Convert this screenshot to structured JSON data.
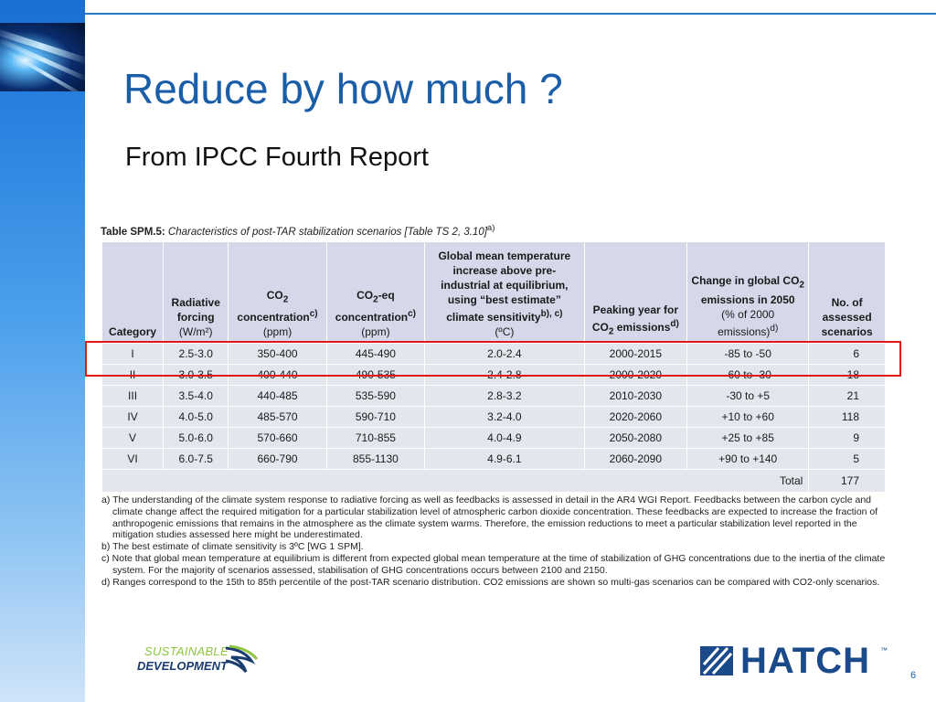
{
  "slide": {
    "title": "Reduce by how much ?",
    "subtitle": "From IPCC Fourth Report",
    "page_number": "6"
  },
  "table": {
    "label": "Table SPM.5:",
    "caption": "Characteristics of post-TAR stabilization scenarios [Table TS 2, 3.10]",
    "caption_sup": "a)",
    "headers": {
      "category": "Category",
      "radiative_forcing_bold": "Radiative forcing",
      "radiative_forcing_unit": "(W/m²)",
      "co2_bold_a": "CO",
      "co2_bold_sub": "2",
      "co2_bold_b": "concentration",
      "co2_sup": "c)",
      "co2_unit": "(ppm)",
      "co2eq_bold_a": "CO",
      "co2eq_bold_sub": "2",
      "co2eq_bold_b": "-eq concentration",
      "co2eq_sup": "c)",
      "co2eq_unit": "(ppm)",
      "temp_bold": "Global mean temperature increase above pre-industrial at equilibrium, using “best estimate” climate sensitivity",
      "temp_sup": "b), c)",
      "temp_unit": "(ºC)",
      "peak_bold_a": "Peaking year for CO",
      "peak_bold_sub": "2",
      "peak_bold_b": "emissions",
      "peak_sup": "d)",
      "change_bold_a": "Change in global CO",
      "change_bold_sub": "2",
      "change_bold_b": "emissions in 2050",
      "change_unit": "(% of 2000 emissions)",
      "change_sup": "d)",
      "scenarios_bold": "No. of assessed scenarios"
    },
    "rows": [
      {
        "category": "I",
        "forcing": "2.5-3.0",
        "co2": "350-400",
        "co2eq": "445-490",
        "temp": "2.0-2.4",
        "peak": "2000-2015",
        "change": "-85 to -50",
        "scenarios": "6"
      },
      {
        "category": "II",
        "forcing": "3.0-3.5",
        "co2": "400-440",
        "co2eq": "490-535",
        "temp": "2.4-2.8",
        "peak": "2000-2020",
        "change": "-60 to -30",
        "scenarios": "18"
      },
      {
        "category": "III",
        "forcing": "3.5-4.0",
        "co2": "440-485",
        "co2eq": "535-590",
        "temp": "2.8-3.2",
        "peak": "2010-2030",
        "change": "-30 to +5",
        "scenarios": "21"
      },
      {
        "category": "IV",
        "forcing": "4.0-5.0",
        "co2": "485-570",
        "co2eq": "590-710",
        "temp": "3.2-4.0",
        "peak": "2020-2060",
        "change": "+10 to +60",
        "scenarios": "118"
      },
      {
        "category": "V",
        "forcing": "5.0-6.0",
        "co2": "570-660",
        "co2eq": "710-855",
        "temp": "4.0-4.9",
        "peak": "2050-2080",
        "change": "+25 to +85",
        "scenarios": "9"
      },
      {
        "category": "VI",
        "forcing": "6.0-7.5",
        "co2": "660-790",
        "co2eq": "855-1130",
        "temp": "4.9-6.1",
        "peak": "2060-2090",
        "change": "+90 to +140",
        "scenarios": "5"
      }
    ],
    "total_label": "Total",
    "total_value": "177",
    "highlight_color": "#e01a1a"
  },
  "notes": [
    "a) The understanding of the climate system response to radiative forcing as well as feedbacks is assessed in detail in the AR4 WGI Report. Feedbacks between the carbon cycle and climate change affect the required mitigation for a particular stabilization level of atmospheric carbon dioxide concentration. These feedbacks are expected to increase the fraction of anthropogenic emissions that remains in the atmosphere as the climate system warms. Therefore, the emission reductions to meet a particular stabilization level reported in the mitigation studies assessed here might be underestimated.",
    "b) The best estimate of climate sensitivity is 3ºC [WG 1 SPM].",
    "c) Note that global mean temperature at equilibrium is different from expected global mean temperature at the time of stabilization of GHG concentrations due to the inertia of the climate system. For the majority of scenarios assessed, stabilisation of GHG concentrations occurs between 2100 and 2150.",
    "d) Ranges correspond to the 15th to 85th percentile of the post-TAR scenario distribution. CO2 emissions are shown so multi-gas scenarios can be compared with CO2-only scenarios."
  ],
  "logos": {
    "sd_line1": "SUSTAINABLE",
    "sd_line2": "DEVELOPMENT",
    "hatch_word": "HATCH",
    "hatch_tm": "™"
  },
  "colors": {
    "title": "#1b5ea8",
    "header_bg": "#d4d8e8",
    "row_bg": "#e4e6ee",
    "sidebar": "#2b83e0",
    "hatch_blue": "#1a4a8a",
    "sd_green": "#8dc63f"
  }
}
